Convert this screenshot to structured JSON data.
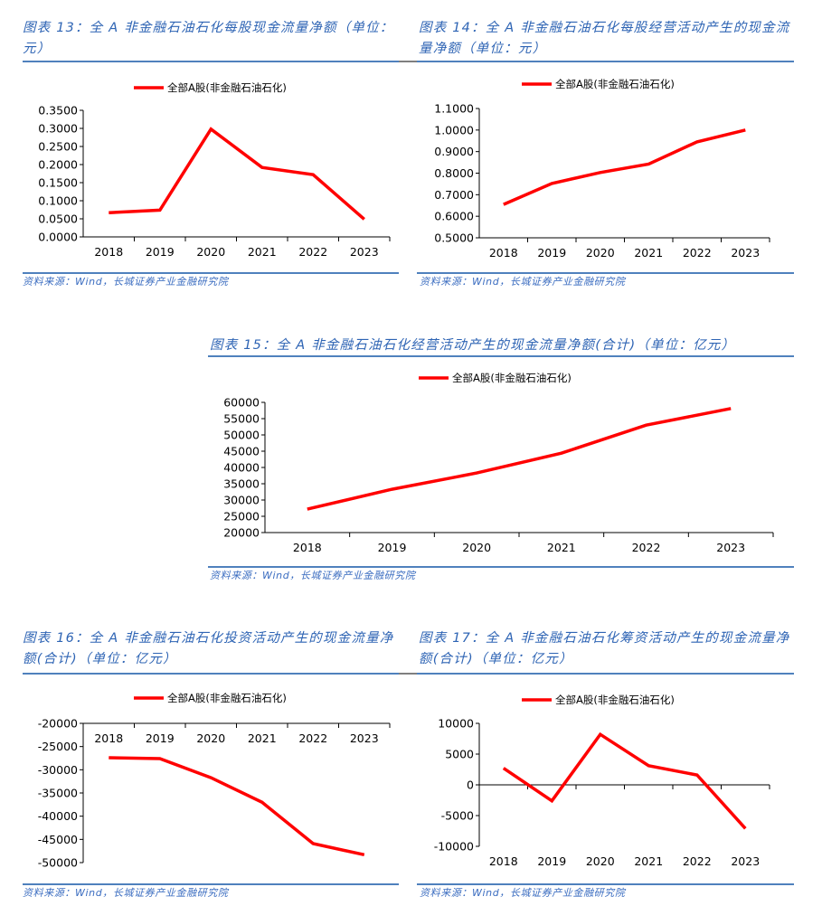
{
  "page": {
    "source_label": "资料来源：",
    "source_text": "Wind，长城证券产业金融研究院"
  },
  "chart_data": [
    {
      "id": "fig13",
      "type": "line",
      "title_prefix": "图表 ",
      "title_number": "13:",
      "title_text": " 全 A 非金融石油石化每股现金流量净额（单位：元）",
      "title_lines": [
        "图表 13：全 A 非金融石油石化每股现金流量净额（单位：",
        "元）"
      ],
      "categories": [
        "2018",
        "2019",
        "2020",
        "2021",
        "2022",
        "2023"
      ],
      "series": [
        {
          "name": "全部A股(非金融石油石化)",
          "color": "#ff0000",
          "values": [
            0.067,
            0.074,
            0.298,
            0.192,
            0.172,
            0.049
          ]
        }
      ],
      "yticks": [
        "0.0000",
        "0.0500",
        "0.1000",
        "0.1500",
        "0.2000",
        "0.2500",
        "0.3000",
        "0.3500"
      ],
      "ylim": [
        0,
        0.35
      ],
      "xlabel": "",
      "ylabel": "",
      "grid": false,
      "legend": "top"
    },
    {
      "id": "fig14",
      "type": "line",
      "title_lines": [
        "图表 14：全 A 非金融石油石化每股经营活动产生的现金流",
        "量净额（单位：元）"
      ],
      "categories": [
        "2018",
        "2019",
        "2020",
        "2021",
        "2022",
        "2023"
      ],
      "series": [
        {
          "name": "全部A股(非金融石油石化)",
          "color": "#ff0000",
          "values": [
            0.655,
            0.752,
            0.803,
            0.842,
            0.945,
            1.0
          ]
        }
      ],
      "yticks": [
        "0.5000",
        "0.6000",
        "0.7000",
        "0.8000",
        "0.9000",
        "1.0000",
        "1.1000"
      ],
      "ylim": [
        0.5,
        1.1
      ],
      "xlabel": "",
      "ylabel": "",
      "grid": false,
      "legend": "top"
    },
    {
      "id": "fig15",
      "type": "line",
      "title_lines": [
        "图表 15：全 A 非金融石油石化经营活动产生的现金流量净额(合计)（单位：亿元）"
      ],
      "categories": [
        "2018",
        "2019",
        "2020",
        "2021",
        "2022",
        "2023"
      ],
      "series": [
        {
          "name": "全部A股(非金融石油石化)",
          "color": "#ff0000",
          "values": [
            27200,
            33300,
            38300,
            44400,
            53000,
            58100
          ]
        }
      ],
      "yticks": [
        "20000",
        "25000",
        "30000",
        "35000",
        "40000",
        "45000",
        "50000",
        "55000",
        "60000"
      ],
      "ylim": [
        20000,
        60000
      ],
      "xlabel": "",
      "ylabel": "",
      "grid": false,
      "legend": "top"
    },
    {
      "id": "fig16",
      "type": "line",
      "title_lines": [
        "图表 16：全 A 非金融石油石化投资活动产生的现金流量净",
        "额(合计)（单位：亿元）"
      ],
      "categories": [
        "2018",
        "2019",
        "2020",
        "2021",
        "2022",
        "2023"
      ],
      "series": [
        {
          "name": "全部A股(非金融石油石化)",
          "color": "#ff0000",
          "values": [
            -27400,
            -27600,
            -31700,
            -37000,
            -45900,
            -48300
          ]
        }
      ],
      "yticks": [
        "-50000",
        "-45000",
        "-40000",
        "-35000",
        "-30000",
        "-25000",
        "-20000"
      ],
      "ylim": [
        -50000,
        -20000
      ],
      "xaxis_position": "top",
      "xlabel": "",
      "ylabel": "",
      "grid": false,
      "legend": "top"
    },
    {
      "id": "fig17",
      "type": "line",
      "title_lines": [
        "图表 17：全 A 非金融石油石化筹资活动产生的现金流量净",
        "额(合计)（单位：亿元）"
      ],
      "categories": [
        "2018",
        "2019",
        "2020",
        "2021",
        "2022",
        "2023"
      ],
      "series": [
        {
          "name": "全部A股(非金融石油石化)",
          "color": "#ff0000",
          "values": [
            2700,
            -2600,
            8200,
            3100,
            1600,
            -7100
          ]
        }
      ],
      "yticks": [
        "-10000",
        "-5000",
        "0",
        "5000",
        "10000"
      ],
      "ylim": [
        -10000,
        10000
      ],
      "xaxis_position": "zero",
      "xlabel": "",
      "ylabel": "",
      "grid": false,
      "legend": "top"
    }
  ]
}
